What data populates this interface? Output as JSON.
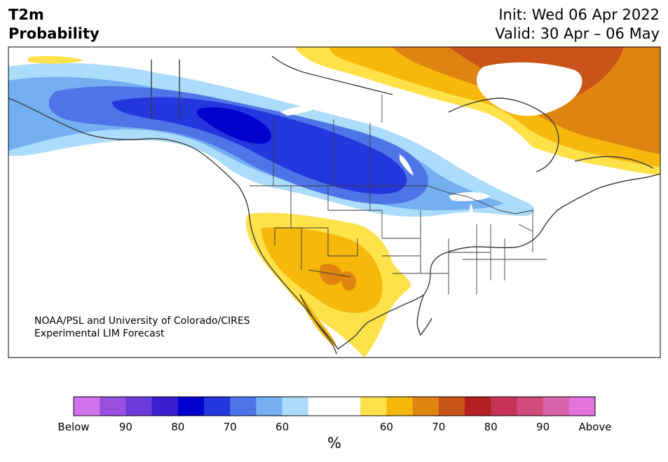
{
  "header": {
    "title_line1": "T2m",
    "title_line2": "Probability",
    "init": "Init: Wed 06 Apr 2022",
    "valid": "Valid: 30 Apr – 06 May"
  },
  "credit": {
    "line1": "NOAA/PSL and University of Colorado/CIRES",
    "line2": "Experimental LIM Forecast"
  },
  "colorbar": {
    "colors": [
      "#d373eb",
      "#9a51e0",
      "#6b3cd9",
      "#3a1fd1",
      "#0000cf",
      "#2436de",
      "#4e74e8",
      "#74aff2",
      "#acdcfb",
      "#ffffff",
      "#ffffff",
      "#ffe14a",
      "#f5b80b",
      "#df8410",
      "#c95318",
      "#b31f22",
      "#c53357",
      "#d24b7c",
      "#d862a8",
      "#e373dc"
    ],
    "tick_labels": [
      "Below",
      "90",
      "80",
      "70",
      "60",
      "60",
      "70",
      "80",
      "90",
      "Above"
    ],
    "unit": "%"
  },
  "map": {
    "colors": {
      "coast": "#3a3a3a",
      "water": "#ffffff",
      "blue_60": "#acdcfb",
      "blue_65": "#74aff2",
      "blue_70": "#4e74e8",
      "blue_75": "#2436de",
      "blue_80": "#0000cf",
      "orange_60": "#ffe14a",
      "orange_65": "#f5b80b",
      "orange_70": "#df8410",
      "orange_75": "#c95318"
    }
  }
}
